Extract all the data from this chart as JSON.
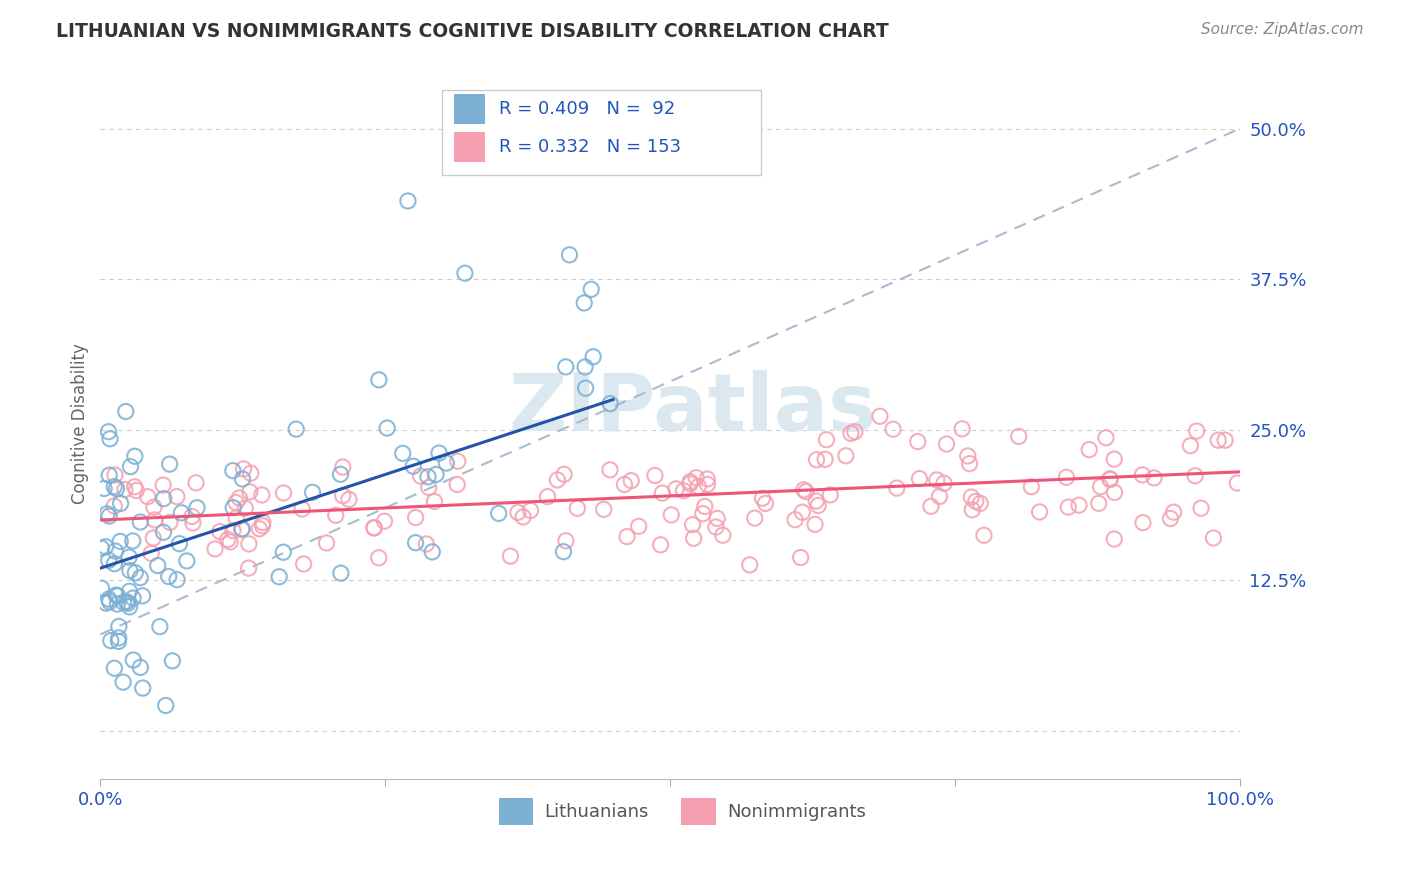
{
  "title": "LITHUANIAN VS NONIMMIGRANTS COGNITIVE DISABILITY CORRELATION CHART",
  "source": "Source: ZipAtlas.com",
  "ylabel": "Cognitive Disability",
  "xlim": [
    0,
    1.0
  ],
  "ylim": [
    -0.04,
    0.55
  ],
  "yticks": [
    0.0,
    0.125,
    0.25,
    0.375,
    0.5
  ],
  "ytick_labels": [
    "",
    "12.5%",
    "25.0%",
    "37.5%",
    "50.0%"
  ],
  "xticks": [
    0.0,
    0.25,
    0.5,
    0.75,
    1.0
  ],
  "xtick_labels": [
    "0.0%",
    "",
    "",
    "",
    "100.0%"
  ],
  "legend_r1": "R = 0.409",
  "legend_n1": "N =  92",
  "legend_r2": "R = 0.332",
  "legend_n2": "N = 153",
  "legend1_label": "Lithuanians",
  "legend2_label": "Nonimmigrants",
  "blue_color": "#7BAFD4",
  "pink_color": "#F4A0B0",
  "blue_line_color": "#2255AA",
  "pink_line_color": "#EE5577",
  "axis_label_color": "#2255BB",
  "grid_color": "#CCCCCC",
  "watermark_color": "#DCE8F0",
  "title_color": "#333333",
  "source_color": "#888888"
}
